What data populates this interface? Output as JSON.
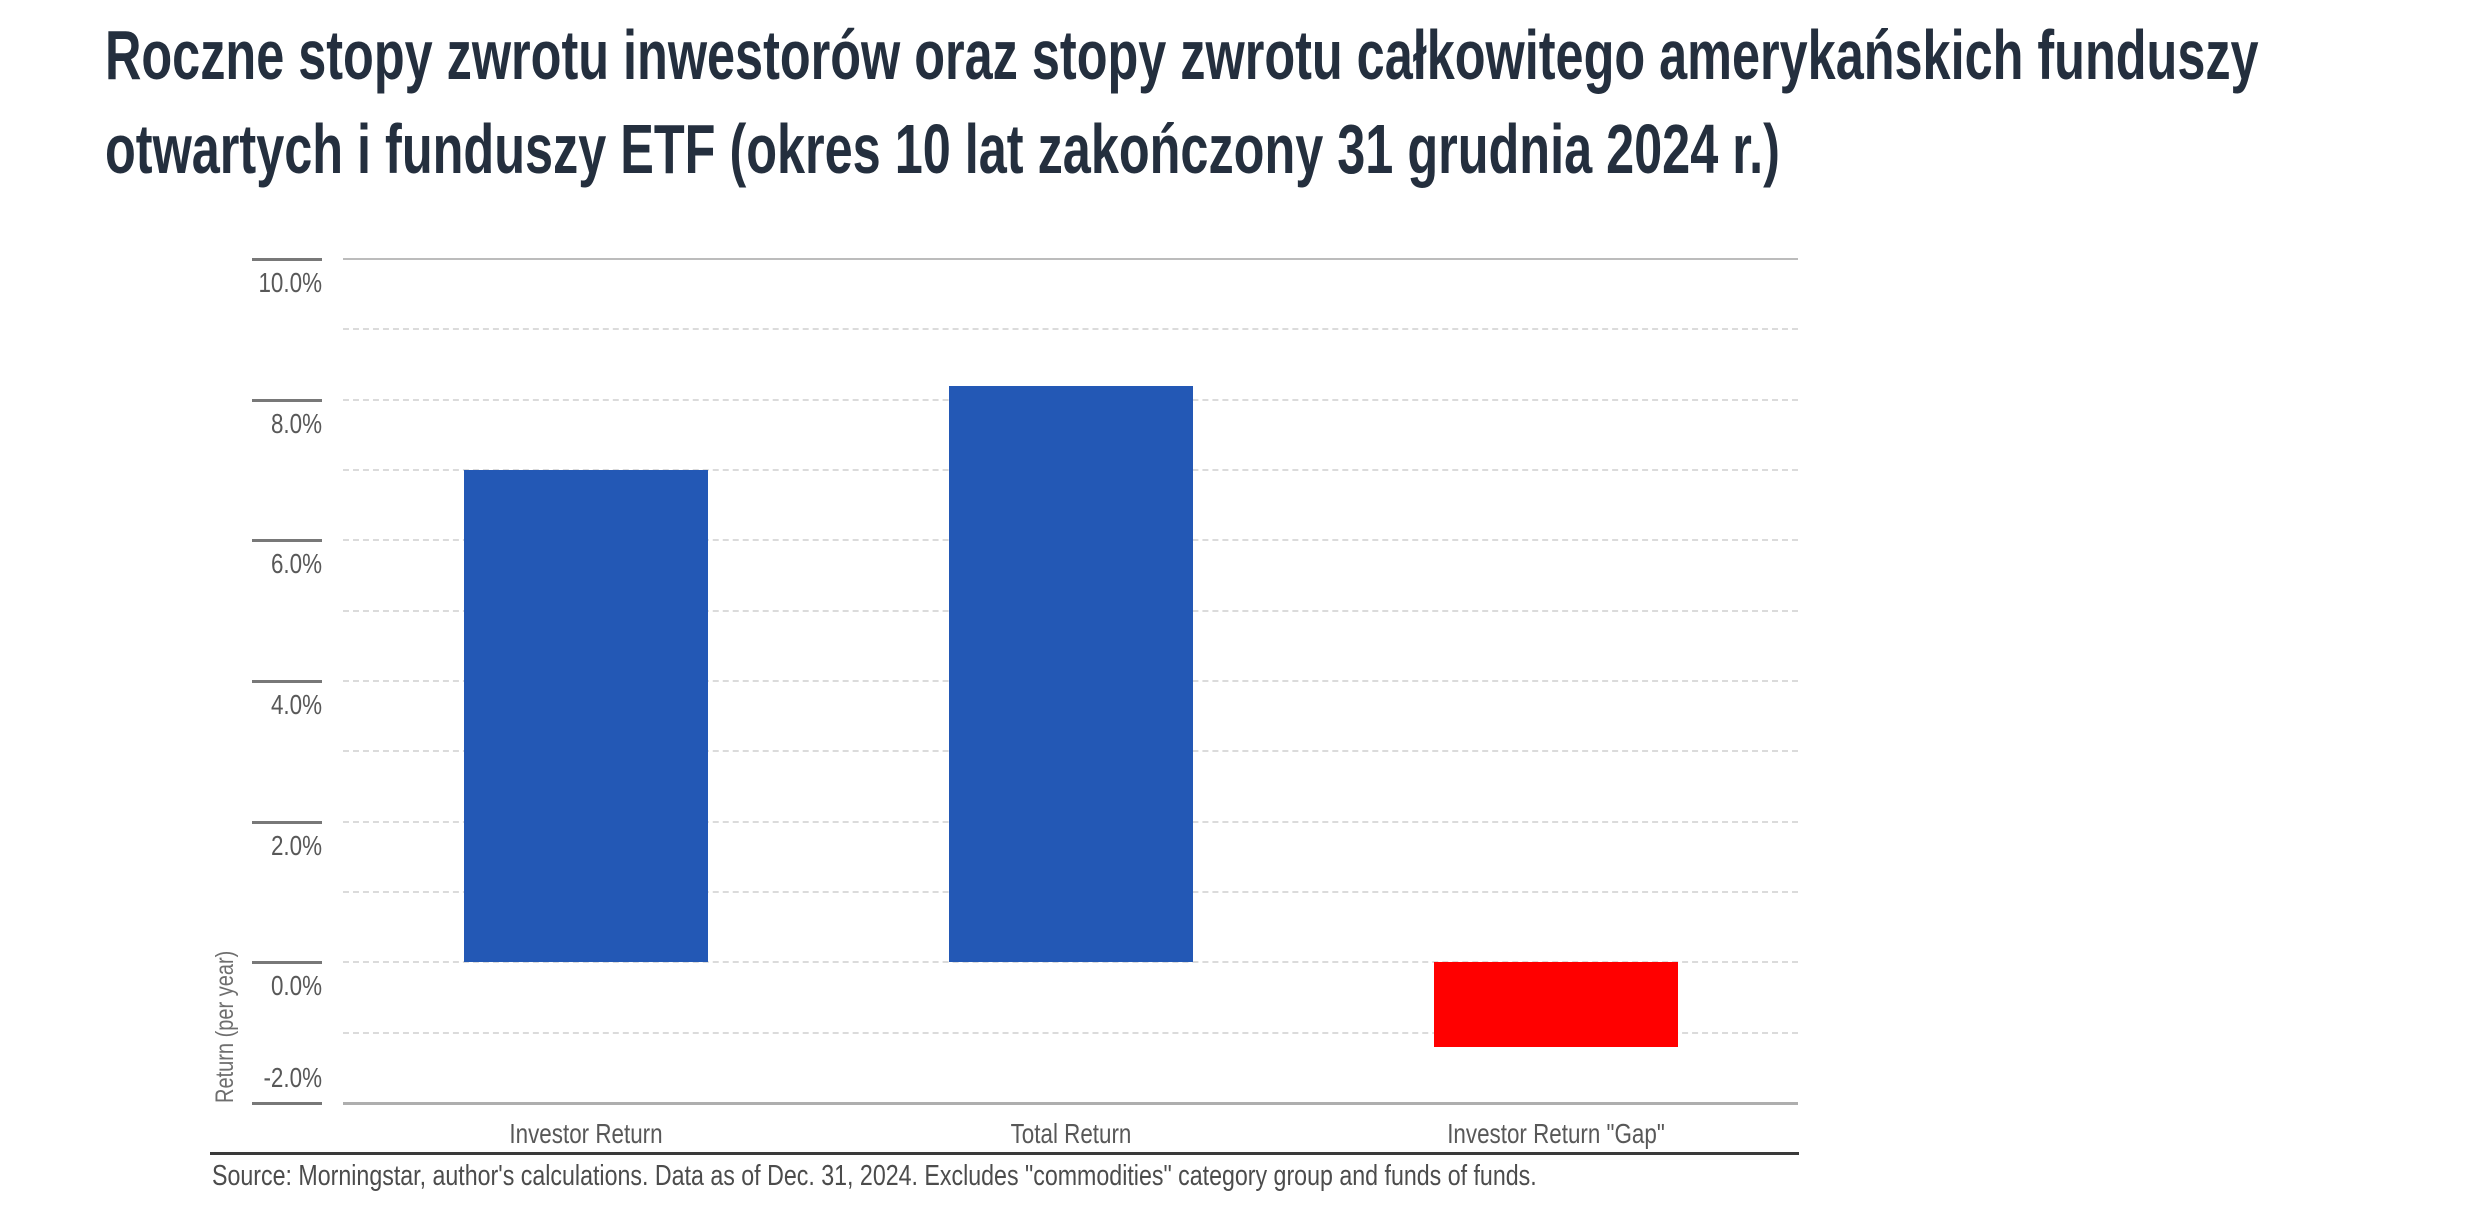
{
  "title": {
    "line1": "Roczne stopy zwrotu inwestorów oraz stopy zwrotu całkowitego amerykańskich funduszy",
    "line2": "otwartych i funduszy ETF (okres 10 lat zakończony 31 grudnia 2024 r.)"
  },
  "source": {
    "text": "Source: Morningstar, author's calculations. Data as of Dec. 31, 2024. Excludes \"commodities\" category group and funds of funds."
  },
  "colors": {
    "title": "#242f3e",
    "bar_blue": "#2358b5",
    "bar_red": "#ff0000",
    "axis_text": "#585858",
    "gridline": "#dbdbdb"
  },
  "chart_data": {
    "type": "bar",
    "categories": [
      "Investor Return",
      "Total Return",
      "Investor Return \"Gap\""
    ],
    "values": [
      7.0,
      8.2,
      -1.2
    ],
    "colors": [
      "#2358b5",
      "#2358b5",
      "#ff0000"
    ],
    "title": "",
    "xlabel": "",
    "ylabel": "Return (per year)",
    "ylim": [
      -2,
      10
    ],
    "y_ticks": [
      {
        "value": 10,
        "label": "10.0%"
      },
      {
        "value": 8,
        "label": "8.0%"
      },
      {
        "value": 6,
        "label": "6.0%"
      },
      {
        "value": 4,
        "label": "4.0%"
      },
      {
        "value": 2,
        "label": "2.0%"
      },
      {
        "value": 0,
        "label": "0.0%"
      },
      {
        "value": -2,
        "label": "-2.0%"
      }
    ],
    "y_gridlines": [
      9,
      8,
      7,
      6,
      5,
      4,
      3,
      2,
      1,
      0,
      -1
    ],
    "grid": "dashed-horizontal",
    "legend": "none",
    "baseline": 0
  }
}
